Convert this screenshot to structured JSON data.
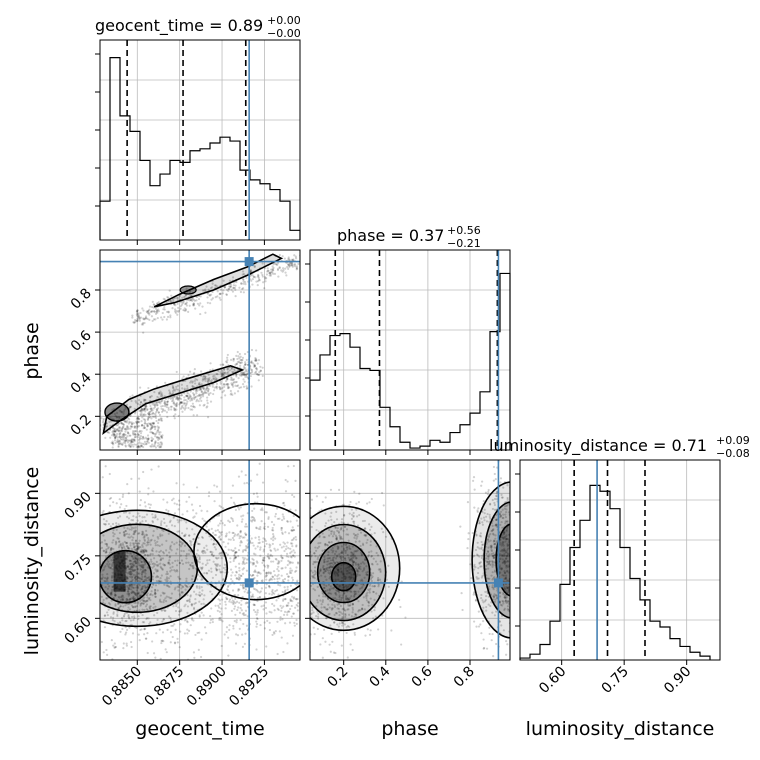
{
  "chart_data": {
    "type": "corner",
    "parameters": [
      "geocent_time",
      "phase",
      "luminosity_distance"
    ],
    "truths": {
      "geocent_time": 0.8916,
      "phase": 0.935,
      "luminosity_distance": 0.685
    },
    "titles": [
      {
        "name": "geocent_time",
        "value": "0.89",
        "plus": "+0.00",
        "minus": "−0.00"
      },
      {
        "name": "phase",
        "value": "0.37",
        "plus": "+0.56",
        "minus": "−0.21"
      },
      {
        "name": "luminosity_distance",
        "value": "0.71",
        "plus": "+0.09",
        "minus": "−0.08"
      }
    ],
    "ranges": {
      "geocent_time": [
        0.8828,
        0.8946
      ],
      "phase": [
        0.04,
        0.99
      ],
      "luminosity_distance": [
        0.5,
        0.98
      ]
    },
    "ticks": {
      "geocent_time": {
        "values": [
          0.885,
          0.8875,
          0.89,
          0.8925
        ],
        "labels": [
          "0.8850",
          "0.8875",
          "0.8900",
          "0.8925"
        ]
      },
      "phase_x": {
        "values": [
          0.2,
          0.4,
          0.6,
          0.8
        ],
        "labels": [
          "0.2",
          "0.4",
          "0.6",
          "0.8"
        ]
      },
      "phase_y": {
        "values": [
          0.2,
          0.4,
          0.6,
          0.8
        ],
        "labels": [
          "0.2",
          "0.4",
          "0.6",
          "0.8"
        ]
      },
      "luminosity_distance": {
        "values": [
          0.6,
          0.75,
          0.9
        ],
        "labels": [
          "0.60",
          "0.75",
          "0.90"
        ]
      }
    },
    "histograms": {
      "geocent_time": {
        "edges_start": 0.8828,
        "bin_width": 0.00059,
        "counts": [
          0.2,
          0.94,
          0.64,
          0.56,
          0.41,
          0.28,
          0.34,
          0.41,
          0.4,
          0.46,
          0.47,
          0.5,
          0.53,
          0.51,
          0.36,
          0.31,
          0.29,
          0.26,
          0.2,
          0.05
        ],
        "quantiles": [
          0.8844,
          0.8877,
          0.8914
        ]
      },
      "phase": {
        "edges_start": 0.04,
        "bin_width": 0.0475,
        "counts": [
          0.36,
          0.49,
          0.59,
          0.6,
          0.53,
          0.42,
          0.41,
          0.22,
          0.12,
          0.04,
          0.01,
          0.02,
          0.05,
          0.04,
          0.09,
          0.13,
          0.19,
          0.3,
          0.61,
          0.91
        ],
        "quantiles": [
          0.16,
          0.37,
          0.93
        ]
      },
      "luminosity_distance": {
        "edges_start": 0.5,
        "bin_width": 0.024,
        "counts": [
          0.01,
          0.03,
          0.08,
          0.2,
          0.39,
          0.58,
          0.72,
          0.9,
          0.87,
          0.78,
          0.58,
          0.42,
          0.31,
          0.2,
          0.17,
          0.11,
          0.07,
          0.04,
          0.02
        ],
        "quantiles": [
          0.63,
          0.71,
          0.8
        ]
      }
    },
    "axis_labels": {
      "x": [
        "geocent_time",
        "phase",
        "luminosity_distance"
      ],
      "y": [
        "phase",
        "luminosity_distance"
      ]
    },
    "grid": true,
    "truth_color": "#4682b4"
  }
}
